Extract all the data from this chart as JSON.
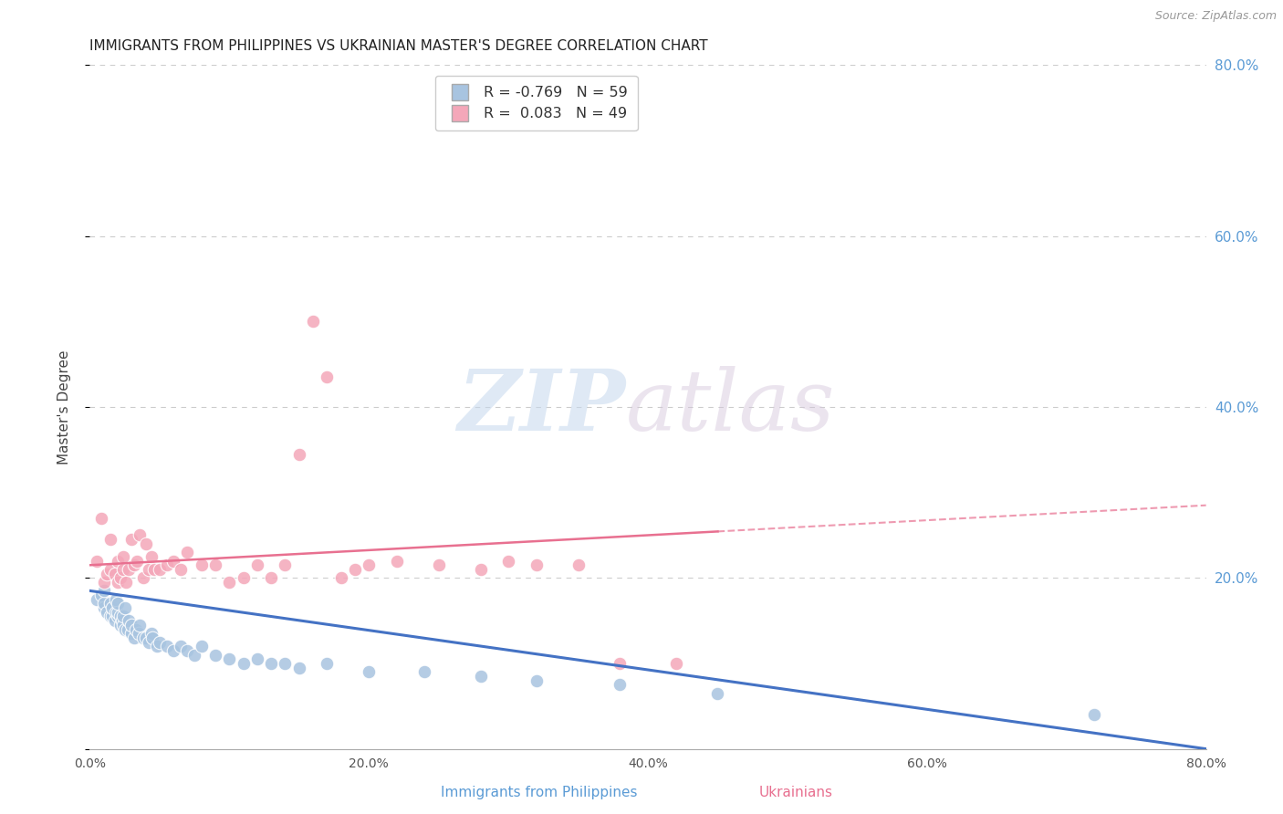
{
  "title": "IMMIGRANTS FROM PHILIPPINES VS UKRAINIAN MASTER'S DEGREE CORRELATION CHART",
  "source": "Source: ZipAtlas.com",
  "ylabel": "Master's Degree",
  "xlim": [
    0.0,
    0.8
  ],
  "ylim": [
    0.0,
    0.8
  ],
  "x_tick_vals": [
    0.0,
    0.2,
    0.4,
    0.6,
    0.8
  ],
  "x_tick_labels": [
    "0.0%",
    "20.0%",
    "40.0%",
    "60.0%",
    "80.0%"
  ],
  "y_tick_vals_right": [
    0.2,
    0.4,
    0.6,
    0.8
  ],
  "y_tick_labels_right": [
    "20.0%",
    "40.0%",
    "60.0%",
    "80.0%"
  ],
  "blue_scatter_x": [
    0.005,
    0.008,
    0.01,
    0.01,
    0.01,
    0.012,
    0.015,
    0.015,
    0.016,
    0.016,
    0.018,
    0.019,
    0.019,
    0.02,
    0.02,
    0.02,
    0.022,
    0.022,
    0.023,
    0.024,
    0.024,
    0.025,
    0.025,
    0.027,
    0.028,
    0.03,
    0.03,
    0.032,
    0.033,
    0.035,
    0.036,
    0.038,
    0.04,
    0.042,
    0.044,
    0.045,
    0.048,
    0.05,
    0.055,
    0.06,
    0.065,
    0.07,
    0.075,
    0.08,
    0.09,
    0.1,
    0.11,
    0.12,
    0.13,
    0.14,
    0.15,
    0.17,
    0.2,
    0.24,
    0.28,
    0.32,
    0.38,
    0.45,
    0.72
  ],
  "blue_scatter_y": [
    0.175,
    0.18,
    0.165,
    0.17,
    0.185,
    0.16,
    0.155,
    0.17,
    0.155,
    0.165,
    0.15,
    0.16,
    0.175,
    0.155,
    0.16,
    0.17,
    0.145,
    0.155,
    0.15,
    0.145,
    0.155,
    0.14,
    0.165,
    0.14,
    0.15,
    0.135,
    0.145,
    0.13,
    0.14,
    0.135,
    0.145,
    0.13,
    0.13,
    0.125,
    0.135,
    0.13,
    0.12,
    0.125,
    0.12,
    0.115,
    0.12,
    0.115,
    0.11,
    0.12,
    0.11,
    0.105,
    0.1,
    0.105,
    0.1,
    0.1,
    0.095,
    0.1,
    0.09,
    0.09,
    0.085,
    0.08,
    0.075,
    0.065,
    0.04
  ],
  "pink_scatter_x": [
    0.005,
    0.008,
    0.01,
    0.012,
    0.015,
    0.015,
    0.018,
    0.02,
    0.02,
    0.022,
    0.024,
    0.024,
    0.026,
    0.028,
    0.03,
    0.032,
    0.034,
    0.036,
    0.038,
    0.04,
    0.042,
    0.044,
    0.046,
    0.05,
    0.055,
    0.06,
    0.065,
    0.07,
    0.08,
    0.09,
    0.1,
    0.11,
    0.12,
    0.13,
    0.14,
    0.15,
    0.16,
    0.17,
    0.18,
    0.19,
    0.2,
    0.22,
    0.25,
    0.28,
    0.3,
    0.32,
    0.35,
    0.38,
    0.42
  ],
  "pink_scatter_y": [
    0.22,
    0.27,
    0.195,
    0.205,
    0.21,
    0.245,
    0.205,
    0.195,
    0.22,
    0.2,
    0.21,
    0.225,
    0.195,
    0.21,
    0.245,
    0.215,
    0.22,
    0.25,
    0.2,
    0.24,
    0.21,
    0.225,
    0.21,
    0.21,
    0.215,
    0.22,
    0.21,
    0.23,
    0.215,
    0.215,
    0.195,
    0.2,
    0.215,
    0.2,
    0.215,
    0.345,
    0.5,
    0.435,
    0.2,
    0.21,
    0.215,
    0.22,
    0.215,
    0.21,
    0.22,
    0.215,
    0.215,
    0.1,
    0.1
  ],
  "blue_color": "#a8c4e0",
  "pink_color": "#f4a7b9",
  "blue_line_color": "#4472c4",
  "pink_line_color": "#e87090",
  "blue_line_x0": 0.0,
  "blue_line_y0": 0.185,
  "blue_line_x1": 0.8,
  "blue_line_y1": 0.0,
  "pink_line_x0": 0.0,
  "pink_line_y0": 0.215,
  "pink_line_x1": 0.8,
  "pink_line_y1": 0.285,
  "watermark_zip": "ZIP",
  "watermark_atlas": "atlas",
  "grid_color": "#cccccc",
  "title_fontsize": 11,
  "right_axis_tick_color": "#5b9bd5",
  "legend_blue_text": "R = -0.769   N = 59",
  "legend_pink_text": "R =  0.083   N = 49",
  "bottom_label_blue": "Immigrants from Philippines",
  "bottom_label_pink": "Ukrainians"
}
